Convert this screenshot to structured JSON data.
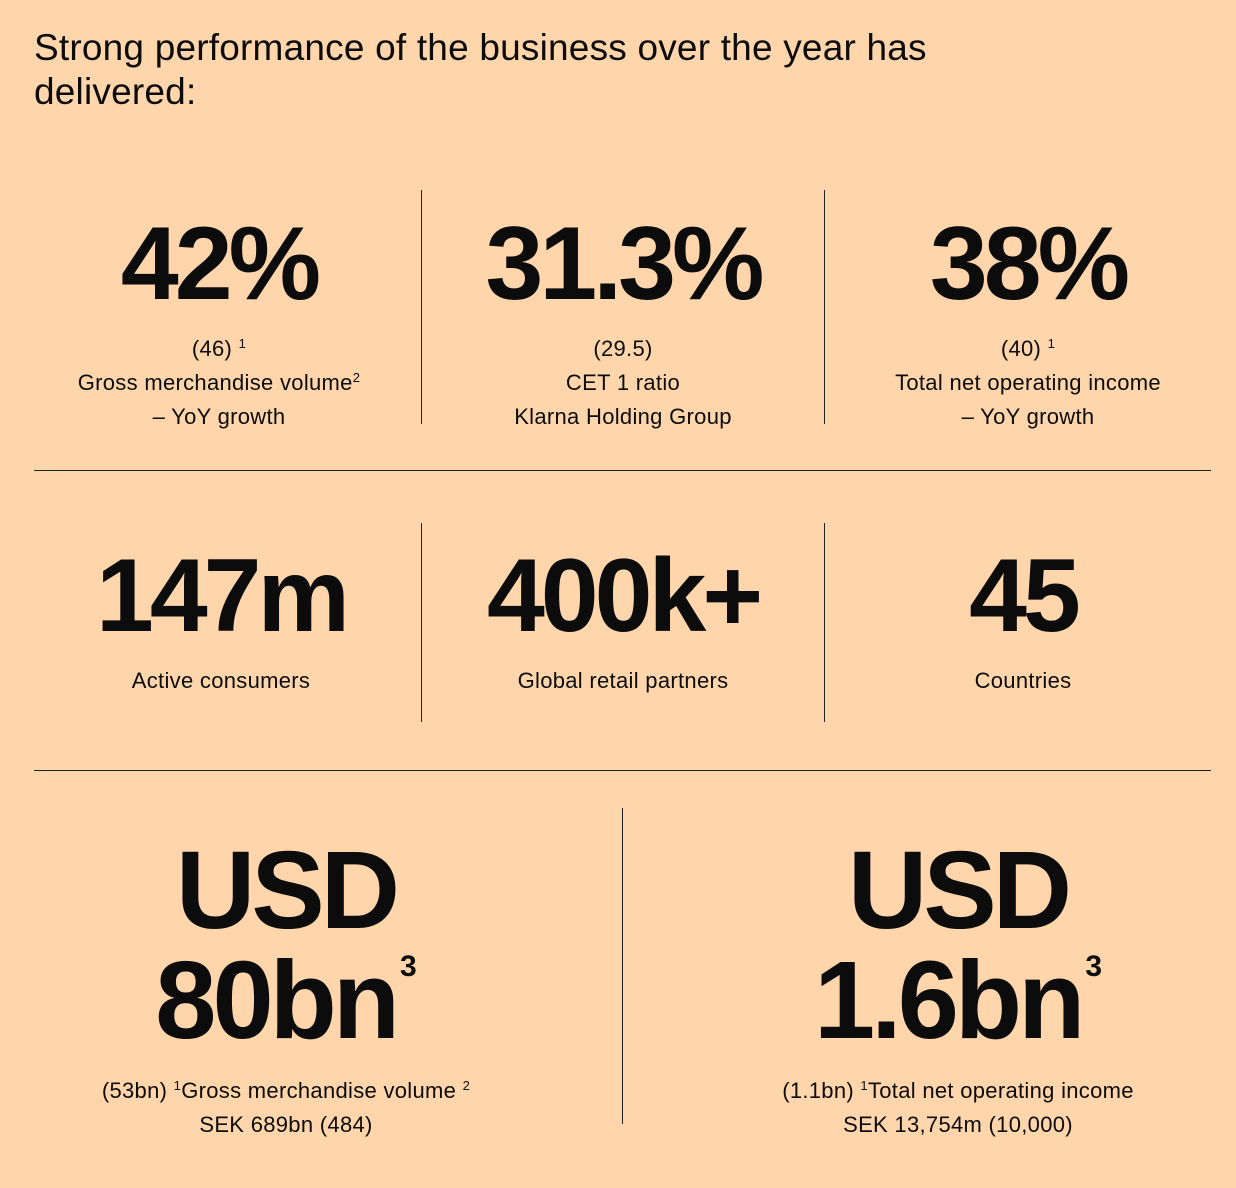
{
  "heading": "Strong performance of the business over the year has delivered:",
  "row1": [
    {
      "value": "42%",
      "prior": "(46)",
      "prior_note": "1",
      "label": "Gross merchandise volume",
      "label_note": "2",
      "label2": "– YoY growth"
    },
    {
      "value": "31.3%",
      "prior": "(29.5)",
      "label": "CET 1 ratio",
      "label2": "Klarna Holding Group"
    },
    {
      "value": "38%",
      "prior": "(40)",
      "prior_note": "1",
      "label": "Total net operating income",
      "label2": "– YoY growth"
    }
  ],
  "row2": [
    {
      "value": "147m",
      "label": "Active consumers"
    },
    {
      "value": "400k+",
      "label": "Global retail partners"
    },
    {
      "value": "45",
      "label": "Countries"
    }
  ],
  "row3": [
    {
      "currency": "USD",
      "value": "80bn",
      "value_note": "3",
      "prior": "(53bn)",
      "prior_note": "1",
      "label": "Gross merchandise volume",
      "label_note": "2",
      "sek": "SEK 689bn (484)"
    },
    {
      "currency": "USD",
      "value": "1.6bn",
      "value_note": "3",
      "prior": "(1.1bn)",
      "prior_note": "1",
      "label": "Total net operating income",
      "sek": "SEK 13,754m (10,000)"
    }
  ]
}
